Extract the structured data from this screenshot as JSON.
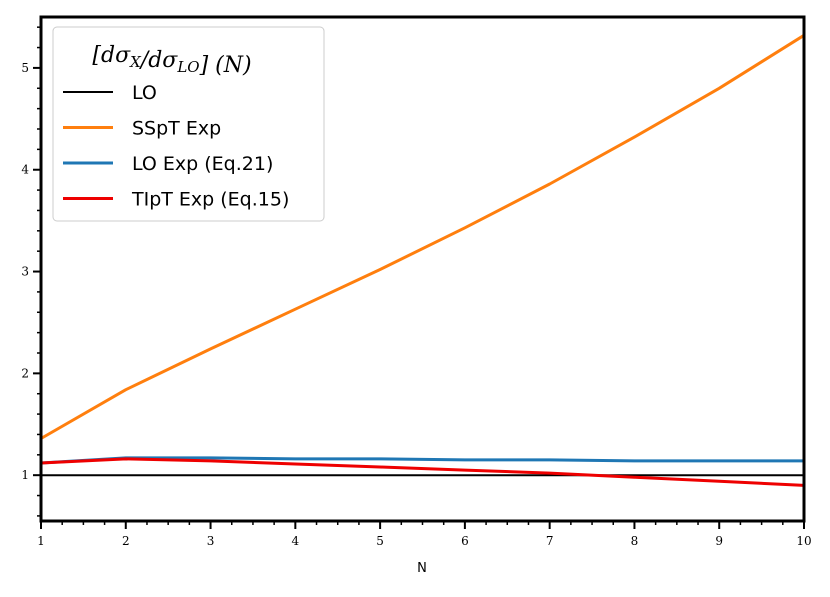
{
  "chart_data": {
    "type": "line",
    "title": "",
    "xlabel": "N",
    "ylabel": "",
    "xlim": [
      1,
      10
    ],
    "ylim": [
      0.55,
      5.5
    ],
    "x_ticks": [
      1,
      2,
      3,
      4,
      5,
      6,
      7,
      8,
      9,
      10
    ],
    "y_ticks": [
      1,
      2,
      3,
      4,
      5
    ],
    "x_tick_labels": [
      "1",
      "2",
      "3",
      "4",
      "5",
      "6",
      "7",
      "8",
      "9",
      "10"
    ],
    "y_tick_labels": [
      "1",
      "2",
      "3",
      "4",
      "5"
    ],
    "grid": false,
    "legend": {
      "title": "[dσ_X/dσ_LO] (N)",
      "placement": "top-left"
    },
    "x": [
      1,
      2,
      3,
      4,
      5,
      6,
      7,
      8,
      9,
      10
    ],
    "series": [
      {
        "name": "LO",
        "color": "#000000",
        "values": [
          1.0,
          1.0,
          1.0,
          1.0,
          1.0,
          1.0,
          1.0,
          1.0,
          1.0,
          1.0
        ]
      },
      {
        "name": "SSpT Exp",
        "color": "#ff7f0e",
        "values": [
          1.36,
          1.84,
          2.24,
          2.63,
          3.02,
          3.43,
          3.86,
          4.32,
          4.8,
          5.32
        ]
      },
      {
        "name": "LO Exp (Eq.21)",
        "color": "#1f77b4",
        "values": [
          1.12,
          1.17,
          1.17,
          1.16,
          1.16,
          1.15,
          1.15,
          1.14,
          1.14,
          1.14
        ]
      },
      {
        "name": "TIpT Exp (Eq.15)",
        "color": "#ee0000",
        "values": [
          1.12,
          1.16,
          1.14,
          1.11,
          1.08,
          1.05,
          1.02,
          0.98,
          0.94,
          0.9
        ]
      }
    ]
  }
}
